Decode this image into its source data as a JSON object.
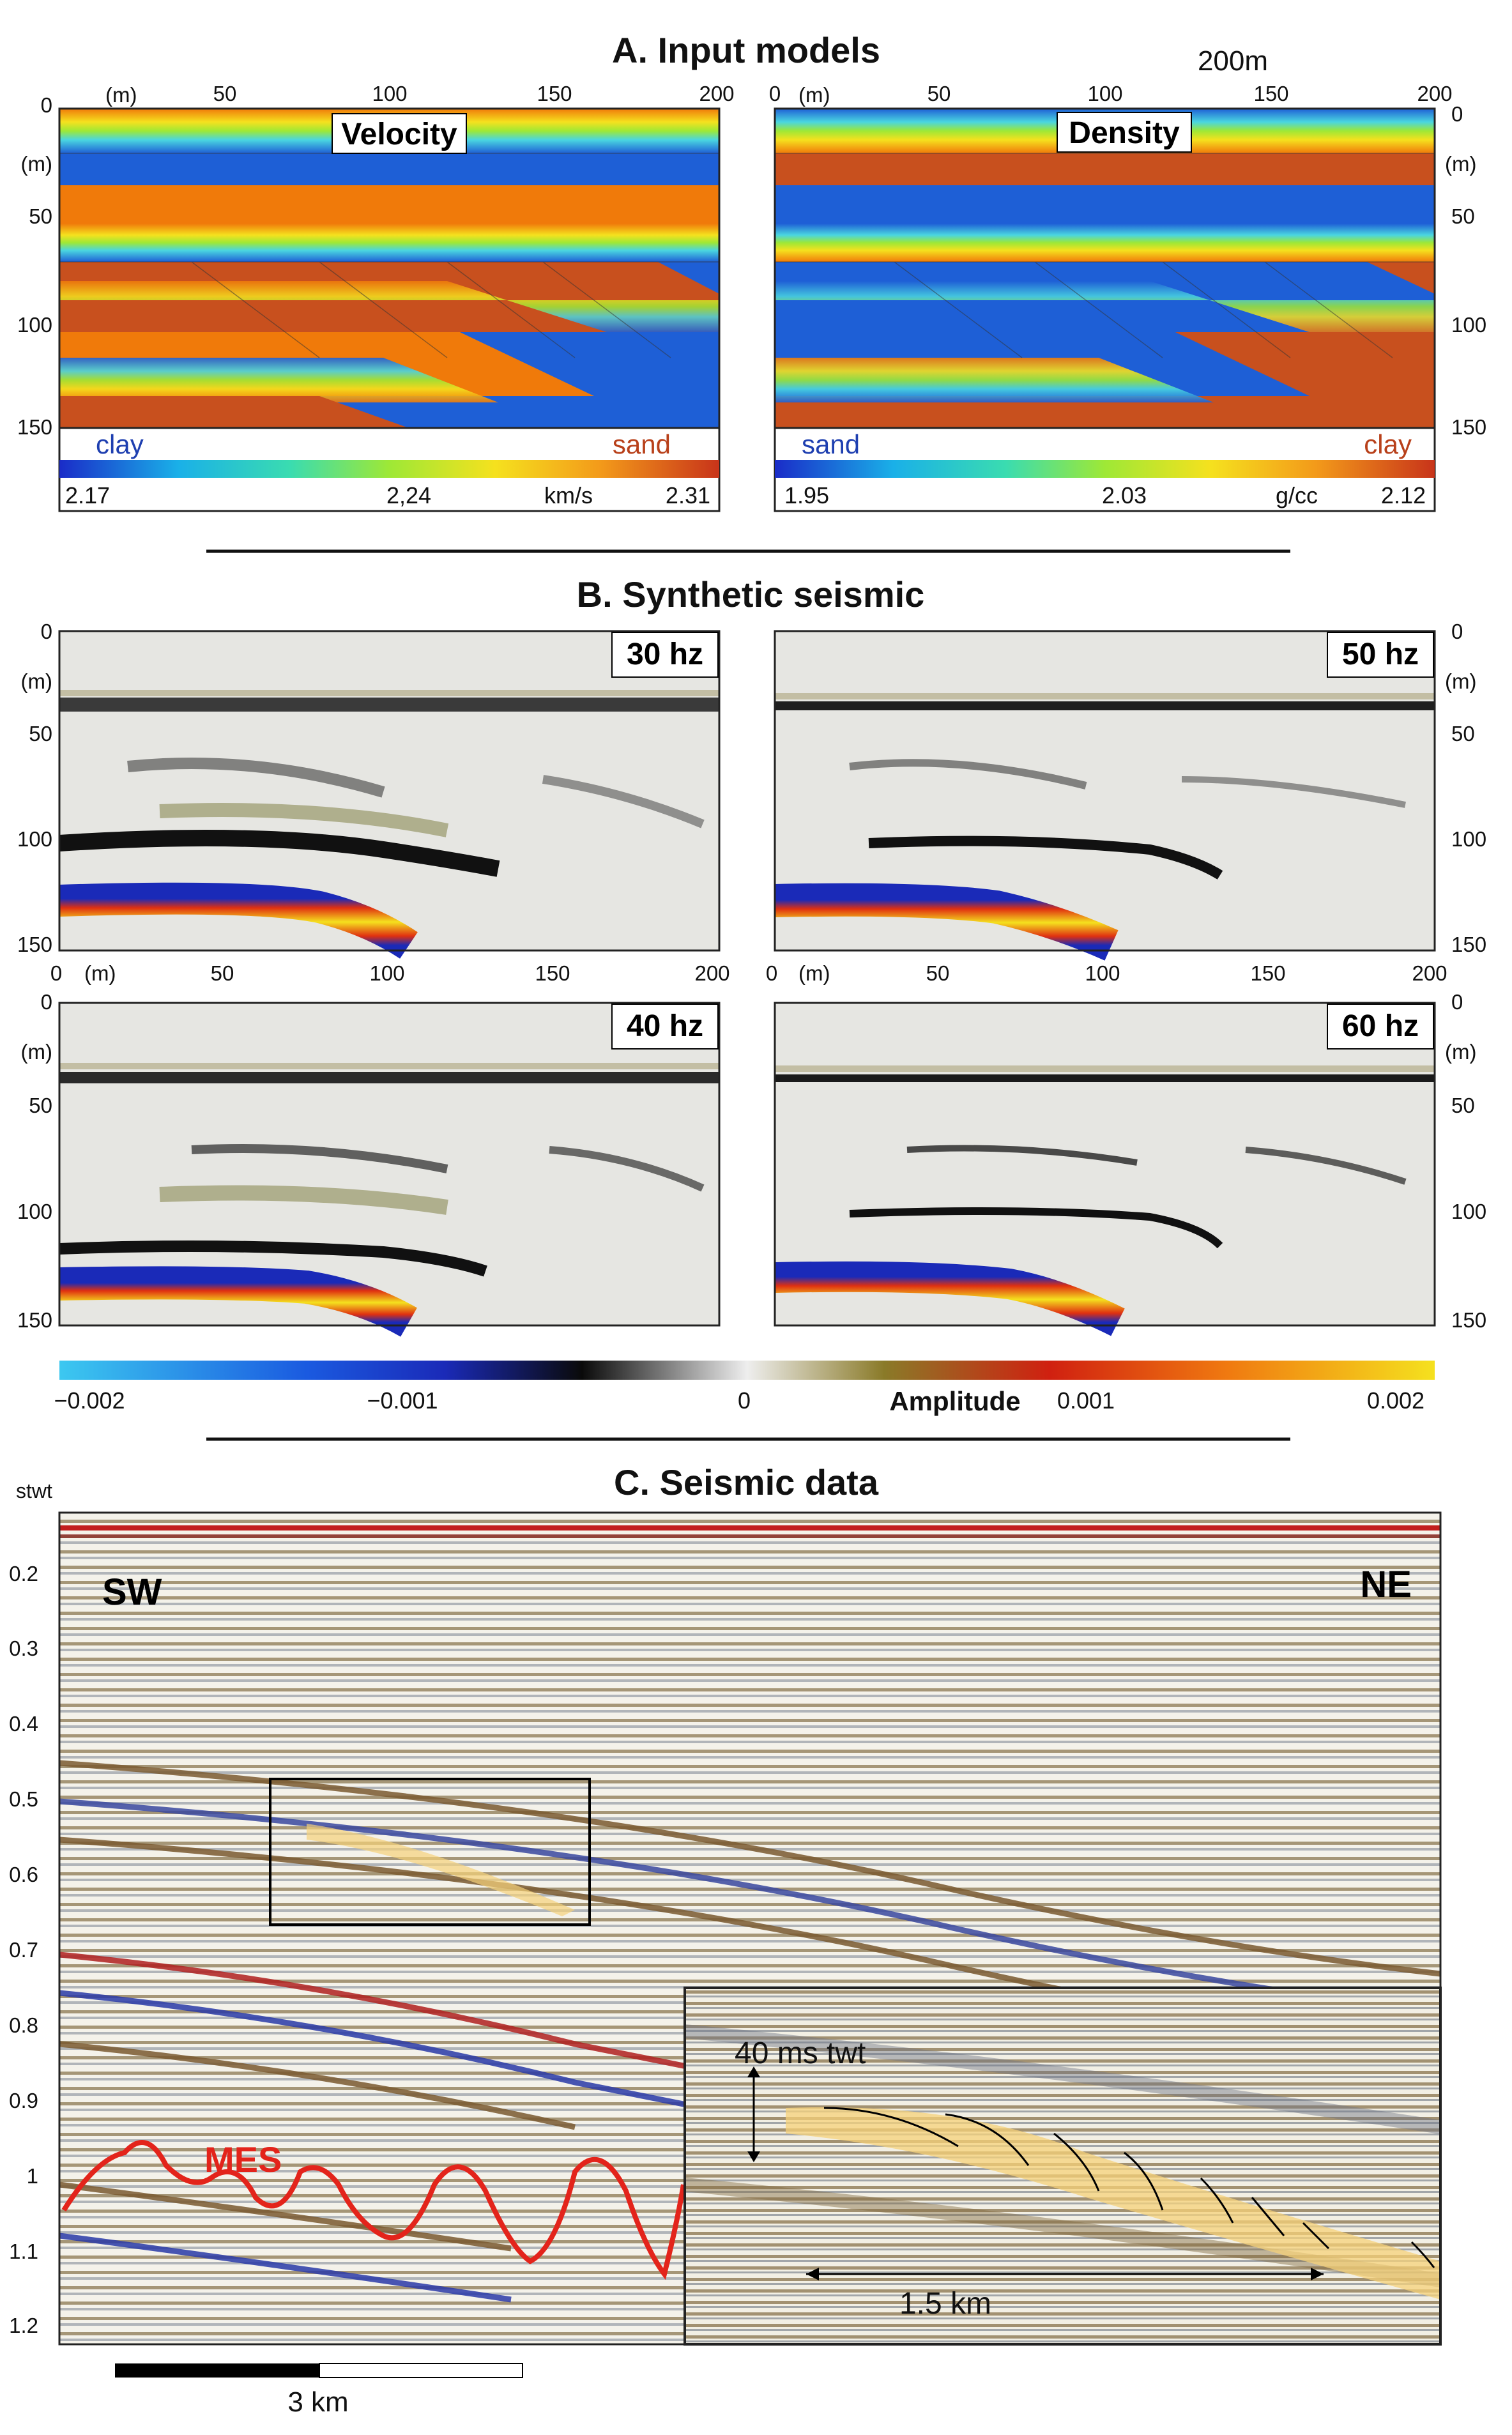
{
  "figure": {
    "section_a": {
      "title": "A. Input models",
      "scale_label": "200m",
      "axis_unit": "(m)",
      "x_ticks": [
        "0",
        "50",
        "100",
        "150",
        "200"
      ],
      "y_ticks": [
        "0",
        "50",
        "100",
        "150"
      ],
      "velocity": {
        "label": "Velocity",
        "left_lith": "clay",
        "right_lith": "sand",
        "cb_min": "2.17",
        "cb_mid": "2,24",
        "cb_unit": "km/s",
        "cb_max": "2.31"
      },
      "density": {
        "label": "Density",
        "left_lith": "sand",
        "right_lith": "clay",
        "cb_min": "1.95",
        "cb_mid": "2.03",
        "cb_unit": "g/cc",
        "cb_max": "2.12"
      }
    },
    "section_b": {
      "title": "B. Synthetic seismic",
      "axis_unit": "(m)",
      "x_ticks": [
        "0",
        "50",
        "100",
        "150",
        "200"
      ],
      "y_ticks": [
        "0",
        "50",
        "100",
        "150"
      ],
      "panels": [
        {
          "freq": "30 hz"
        },
        {
          "freq": "50 hz"
        },
        {
          "freq": "40 hz"
        },
        {
          "freq": "60 hz"
        }
      ],
      "colorbar": {
        "ticks": [
          "−0.002",
          "−0.001",
          "0",
          "0.001",
          "0.002"
        ],
        "label": "Amplitude"
      }
    },
    "section_c": {
      "title": "C. Seismic data",
      "y_unit": "stwt",
      "y_ticks": [
        "0.2",
        "0.3",
        "0.4",
        "0.5",
        "0.6",
        "0.7",
        "0.8",
        "0.9",
        "1",
        "1.1",
        "1.2"
      ],
      "left_label": "SW",
      "right_label": "NE",
      "mes_label": "MES",
      "inset_vertical": "40 ms twt",
      "inset_horizontal": "1.5 km",
      "scale_bar": "3 km"
    },
    "colors": {
      "velocity_clay": "#1e5fd6",
      "sand_orange": "#f07a0a",
      "clay_brown": "#c8501e",
      "mes_red": "#e3241b",
      "sand_highlight": "#f5d27a"
    }
  }
}
